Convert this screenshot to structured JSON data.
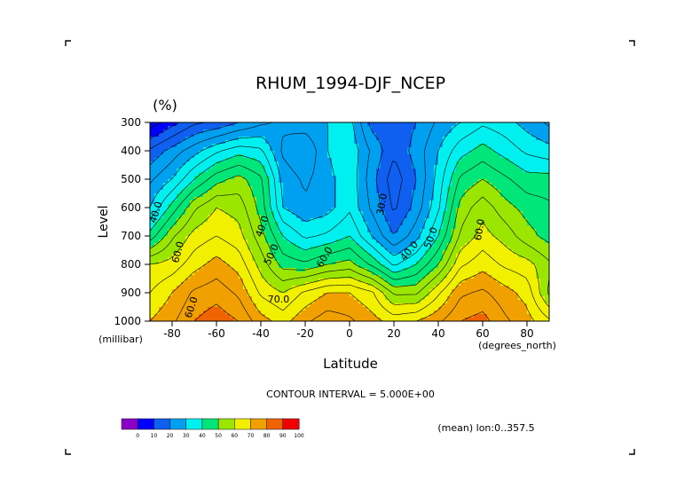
{
  "chart_data": {
    "type": "heatmap",
    "subtype": "filled contour (latitude-pressure cross section)",
    "title": "RHUM_1994-DJF_NCEP",
    "units": "(%)",
    "xlabel": "Latitude",
    "x_units": "(degrees_north)",
    "ylabel": "Level",
    "y_units": "(millibar)",
    "xlim": [
      -90,
      90
    ],
    "ylim": [
      1000,
      300
    ],
    "x_ticks": [
      -80,
      -60,
      -40,
      -20,
      0,
      20,
      40,
      60,
      80
    ],
    "y_ticks": [
      300,
      400,
      500,
      600,
      700,
      800,
      900,
      1000
    ],
    "x_tick_labels": [
      "-80",
      "-60",
      "-40",
      "-20",
      "0",
      "20",
      "40",
      "60",
      "80"
    ],
    "y_tick_labels": [
      "300",
      "400",
      "500",
      "600",
      "700",
      "800",
      "900",
      "1000"
    ],
    "contour_interval_text": "CONTOUR INTERVAL = 5.000E+00",
    "averaging_note": "(mean) lon:0..357.5",
    "contour_labels": [
      "40.0",
      "60.0",
      "60.0",
      "40.0",
      "50.0",
      "70.0",
      "60.0",
      "30.0",
      "40.0",
      "50.0",
      "60.0"
    ],
    "colorbar": {
      "levels": [
        0,
        10,
        20,
        30,
        40,
        50,
        60,
        70,
        80,
        90,
        100
      ],
      "level_labels": [
        "0",
        "10",
        "20",
        "30",
        "40",
        "50",
        "60",
        "70",
        "80",
        "90",
        "100"
      ],
      "colors": [
        "#8c00c8",
        "#0000ff",
        "#0f5ff0",
        "#00a0f0",
        "#00f0f0",
        "#00e678",
        "#9be600",
        "#f0f000",
        "#f0a000",
        "#f06400",
        "#f00000"
      ]
    },
    "grid": false,
    "latitudes": [
      -90,
      -80,
      -70,
      -60,
      -50,
      -40,
      -30,
      -20,
      -10,
      0,
      10,
      20,
      30,
      40,
      50,
      60,
      70,
      80,
      90
    ],
    "levels_hpa": [
      300,
      400,
      500,
      600,
      700,
      800,
      900,
      1000
    ],
    "values": [
      [
        12,
        18,
        24,
        26,
        30,
        34,
        36,
        38,
        40,
        42,
        28,
        26,
        30,
        36,
        40,
        44,
        42,
        38,
        34
      ],
      [
        26,
        32,
        38,
        44,
        48,
        46,
        34,
        30,
        40,
        44,
        34,
        26,
        32,
        40,
        48,
        52,
        48,
        44,
        42
      ],
      [
        34,
        40,
        50,
        58,
        62,
        56,
        38,
        34,
        38,
        44,
        32,
        22,
        30,
        42,
        56,
        60,
        56,
        52,
        52
      ],
      [
        40,
        52,
        64,
        70,
        68,
        58,
        40,
        36,
        38,
        44,
        34,
        24,
        32,
        44,
        62,
        68,
        62,
        58,
        56
      ],
      [
        52,
        64,
        72,
        75,
        72,
        62,
        50,
        44,
        46,
        50,
        40,
        30,
        38,
        50,
        66,
        72,
        68,
        62,
        58
      ],
      [
        70,
        72,
        78,
        82,
        78,
        68,
        58,
        56,
        60,
        62,
        54,
        44,
        50,
        60,
        74,
        78,
        74,
        72,
        66
      ],
      [
        75,
        80,
        86,
        88,
        84,
        74,
        70,
        76,
        80,
        80,
        76,
        64,
        64,
        74,
        84,
        86,
        82,
        78,
        64
      ],
      [
        80,
        84,
        90,
        93,
        90,
        82,
        78,
        84,
        88,
        86,
        82,
        78,
        80,
        84,
        90,
        92,
        86,
        82,
        76
      ]
    ]
  }
}
